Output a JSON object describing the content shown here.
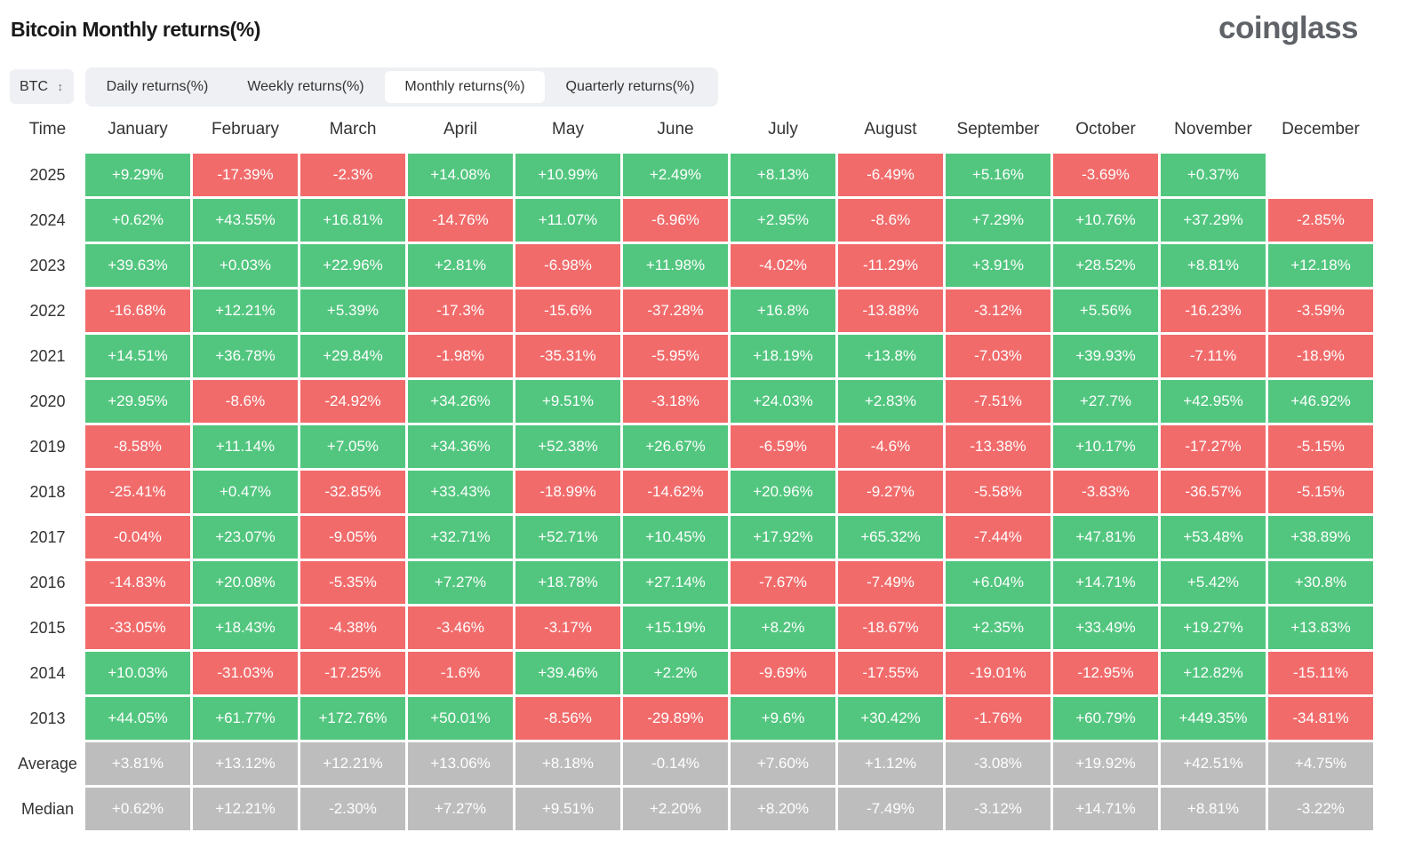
{
  "header": {
    "title": "Bitcoin Monthly returns(%)",
    "logo": "coinglass"
  },
  "controls": {
    "selector": "BTC",
    "tabs": [
      "Daily returns(%)",
      "Weekly returns(%)",
      "Monthly returns(%)",
      "Quarterly returns(%)"
    ],
    "active_tab": 2
  },
  "table": {
    "row_header": "Time",
    "columns": [
      "January",
      "February",
      "March",
      "April",
      "May",
      "June",
      "July",
      "August",
      "September",
      "October",
      "November",
      "December"
    ],
    "rows": [
      {
        "label": "2025",
        "cells": [
          "+9.29%",
          "-17.39%",
          "-2.3%",
          "+14.08%",
          "+10.99%",
          "+2.49%",
          "+8.13%",
          "-6.49%",
          "+5.16%",
          "-3.69%",
          "+0.37%"
        ]
      },
      {
        "label": "2024",
        "cells": [
          "+0.62%",
          "+43.55%",
          "+16.81%",
          "-14.76%",
          "+11.07%",
          "-6.96%",
          "+2.95%",
          "-8.6%",
          "+7.29%",
          "+10.76%",
          "+37.29%",
          "-2.85%"
        ]
      },
      {
        "label": "2023",
        "cells": [
          "+39.63%",
          "+0.03%",
          "+22.96%",
          "+2.81%",
          "-6.98%",
          "+11.98%",
          "-4.02%",
          "-11.29%",
          "+3.91%",
          "+28.52%",
          "+8.81%",
          "+12.18%"
        ]
      },
      {
        "label": "2022",
        "cells": [
          "-16.68%",
          "+12.21%",
          "+5.39%",
          "-17.3%",
          "-15.6%",
          "-37.28%",
          "+16.8%",
          "-13.88%",
          "-3.12%",
          "+5.56%",
          "-16.23%",
          "-3.59%"
        ]
      },
      {
        "label": "2021",
        "cells": [
          "+14.51%",
          "+36.78%",
          "+29.84%",
          "-1.98%",
          "-35.31%",
          "-5.95%",
          "+18.19%",
          "+13.8%",
          "-7.03%",
          "+39.93%",
          "-7.11%",
          "-18.9%"
        ]
      },
      {
        "label": "2020",
        "cells": [
          "+29.95%",
          "-8.6%",
          "-24.92%",
          "+34.26%",
          "+9.51%",
          "-3.18%",
          "+24.03%",
          "+2.83%",
          "-7.51%",
          "+27.7%",
          "+42.95%",
          "+46.92%"
        ]
      },
      {
        "label": "2019",
        "cells": [
          "-8.58%",
          "+11.14%",
          "+7.05%",
          "+34.36%",
          "+52.38%",
          "+26.67%",
          "-6.59%",
          "-4.6%",
          "-13.38%",
          "+10.17%",
          "-17.27%",
          "-5.15%"
        ]
      },
      {
        "label": "2018",
        "cells": [
          "-25.41%",
          "+0.47%",
          "-32.85%",
          "+33.43%",
          "-18.99%",
          "-14.62%",
          "+20.96%",
          "-9.27%",
          "-5.58%",
          "-3.83%",
          "-36.57%",
          "-5.15%"
        ]
      },
      {
        "label": "2017",
        "cells": [
          "-0.04%",
          "+23.07%",
          "-9.05%",
          "+32.71%",
          "+52.71%",
          "+10.45%",
          "+17.92%",
          "+65.32%",
          "-7.44%",
          "+47.81%",
          "+53.48%",
          "+38.89%"
        ]
      },
      {
        "label": "2016",
        "cells": [
          "-14.83%",
          "+20.08%",
          "-5.35%",
          "+7.27%",
          "+18.78%",
          "+27.14%",
          "-7.67%",
          "-7.49%",
          "+6.04%",
          "+14.71%",
          "+5.42%",
          "+30.8%"
        ]
      },
      {
        "label": "2015",
        "cells": [
          "-33.05%",
          "+18.43%",
          "-4.38%",
          "-3.46%",
          "-3.17%",
          "+15.19%",
          "+8.2%",
          "-18.67%",
          "+2.35%",
          "+33.49%",
          "+19.27%",
          "+13.83%"
        ]
      },
      {
        "label": "2014",
        "cells": [
          "+10.03%",
          "-31.03%",
          "-17.25%",
          "-1.6%",
          "+39.46%",
          "+2.2%",
          "-9.69%",
          "-17.55%",
          "-19.01%",
          "-12.95%",
          "+12.82%",
          "-15.11%"
        ]
      },
      {
        "label": "2013",
        "cells": [
          "+44.05%",
          "+61.77%",
          "+172.76%",
          "+50.01%",
          "-8.56%",
          "-29.89%",
          "+9.6%",
          "+30.42%",
          "-1.76%",
          "+60.79%",
          "+449.35%",
          "-34.81%"
        ]
      }
    ],
    "summary_rows": [
      {
        "label": "Average",
        "cells": [
          "+3.81%",
          "+13.12%",
          "+12.21%",
          "+13.06%",
          "+8.18%",
          "-0.14%",
          "+7.60%",
          "+1.12%",
          "-3.08%",
          "+19.92%",
          "+42.51%",
          "+4.75%"
        ]
      },
      {
        "label": "Median",
        "cells": [
          "+0.62%",
          "+12.21%",
          "-2.30%",
          "+7.27%",
          "+9.51%",
          "+2.20%",
          "+8.20%",
          "-7.49%",
          "-3.12%",
          "+14.71%",
          "+8.81%",
          "-3.22%"
        ]
      }
    ]
  }
}
